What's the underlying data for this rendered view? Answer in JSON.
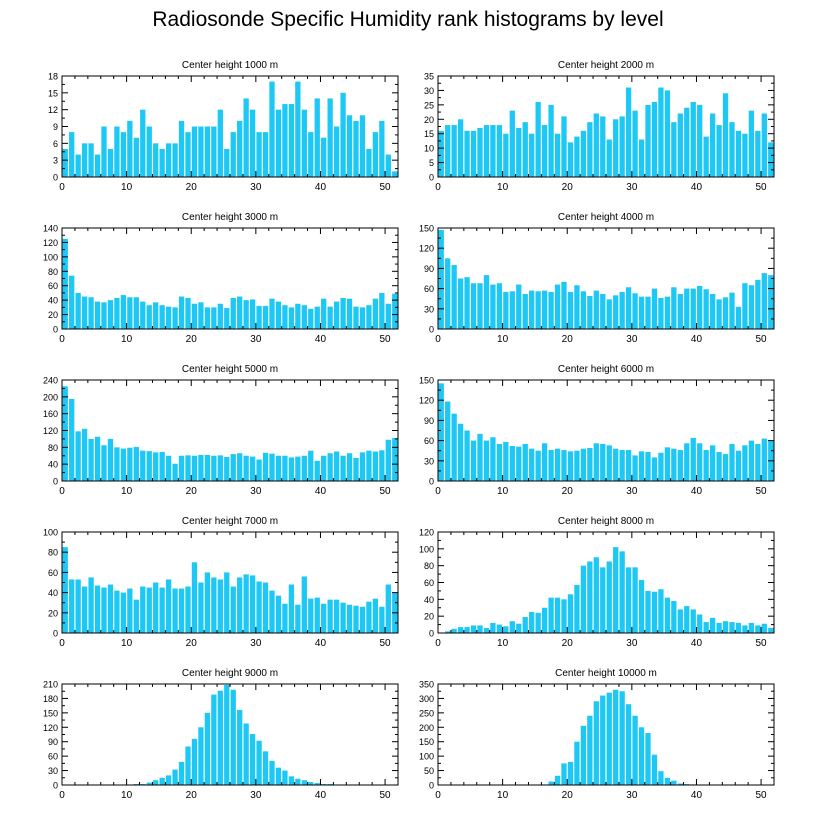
{
  "title": "Radiosonde Specific Humidity rank histograms by level",
  "colors": {
    "bar": "#1ec8f5",
    "axis": "#000000",
    "background": "#ffffff"
  },
  "chart_data": [
    {
      "type": "bar",
      "title": "Center height 1000 m",
      "xlabel": "",
      "ylabel": "",
      "xlim": [
        0,
        52
      ],
      "ylim": [
        0,
        18
      ],
      "xticks": [
        0,
        10,
        20,
        30,
        40,
        50
      ],
      "yticks": [
        0,
        3,
        6,
        9,
        12,
        15,
        18
      ],
      "values": [
        5,
        8,
        4,
        6,
        6,
        4,
        9,
        5,
        9,
        8,
        10,
        7,
        12,
        9,
        6,
        5,
        6,
        6,
        10,
        8,
        9,
        9,
        9,
        9,
        12,
        5,
        8,
        10,
        14,
        12,
        8,
        8,
        17,
        12,
        13,
        13,
        17,
        12,
        8,
        14,
        7,
        14,
        9,
        15,
        11,
        10,
        11,
        5,
        8,
        10,
        4,
        1
      ]
    },
    {
      "type": "bar",
      "title": "Center height 2000 m",
      "xlabel": "",
      "ylabel": "",
      "xlim": [
        0,
        52
      ],
      "ylim": [
        0,
        35
      ],
      "xticks": [
        0,
        10,
        20,
        30,
        40,
        50
      ],
      "yticks": [
        0,
        5,
        10,
        15,
        20,
        25,
        30,
        35
      ],
      "values": [
        16,
        18,
        18,
        20,
        16,
        16,
        17,
        18,
        18,
        18,
        15,
        23,
        17,
        19,
        15,
        26,
        18,
        25,
        15,
        21,
        12,
        14,
        16,
        19,
        22,
        21,
        13,
        20,
        21,
        31,
        23,
        13,
        25,
        26,
        31,
        30,
        19,
        22,
        24,
        26,
        25,
        14,
        22,
        18,
        29,
        19,
        16,
        15,
        23,
        16,
        22,
        12
      ]
    },
    {
      "type": "bar",
      "title": "Center height 3000 m",
      "xlabel": "",
      "ylabel": "",
      "xlim": [
        0,
        52
      ],
      "ylim": [
        0,
        140
      ],
      "xticks": [
        0,
        10,
        20,
        30,
        40,
        50
      ],
      "yticks": [
        0,
        20,
        40,
        60,
        80,
        100,
        120,
        140
      ],
      "values": [
        125,
        74,
        50,
        45,
        44,
        38,
        37,
        40,
        43,
        47,
        44,
        44,
        38,
        33,
        37,
        33,
        31,
        30,
        45,
        43,
        35,
        37,
        30,
        30,
        35,
        29,
        43,
        45,
        40,
        41,
        32,
        32,
        42,
        38,
        33,
        30,
        35,
        33,
        28,
        31,
        42,
        31,
        38,
        43,
        42,
        31,
        30,
        33,
        42,
        50,
        35,
        49
      ]
    },
    {
      "type": "bar",
      "title": "Center height 4000 m",
      "xlabel": "",
      "ylabel": "",
      "xlim": [
        0,
        52
      ],
      "ylim": [
        0,
        150
      ],
      "xticks": [
        0,
        10,
        20,
        30,
        40,
        50
      ],
      "yticks": [
        0,
        30,
        60,
        90,
        120,
        150
      ],
      "values": [
        147,
        105,
        95,
        75,
        77,
        68,
        68,
        80,
        66,
        68,
        55,
        56,
        66,
        52,
        57,
        56,
        57,
        55,
        66,
        70,
        55,
        65,
        56,
        49,
        57,
        52,
        44,
        50,
        55,
        62,
        53,
        48,
        48,
        60,
        46,
        48,
        62,
        52,
        60,
        60,
        64,
        59,
        52,
        44,
        47,
        54,
        33,
        68,
        65,
        73,
        83,
        80
      ]
    },
    {
      "type": "bar",
      "title": "Center height 5000 m",
      "xlabel": "",
      "ylabel": "",
      "xlim": [
        0,
        52
      ],
      "ylim": [
        0,
        240
      ],
      "xticks": [
        0,
        10,
        20,
        30,
        40,
        50
      ],
      "yticks": [
        0,
        40,
        80,
        120,
        160,
        200,
        240
      ],
      "values": [
        225,
        195,
        118,
        124,
        100,
        105,
        85,
        100,
        80,
        77,
        79,
        81,
        72,
        71,
        68,
        69,
        60,
        41,
        60,
        61,
        60,
        62,
        62,
        60,
        61,
        57,
        64,
        66,
        60,
        58,
        51,
        67,
        65,
        60,
        60,
        56,
        58,
        60,
        72,
        48,
        60,
        66,
        70,
        60,
        66,
        55,
        68,
        72,
        70,
        73,
        98,
        102
      ]
    },
    {
      "type": "bar",
      "title": "Center height 6000 m",
      "xlabel": "",
      "ylabel": "",
      "xlim": [
        0,
        52
      ],
      "ylim": [
        0,
        150
      ],
      "xticks": [
        0,
        10,
        20,
        30,
        40,
        50
      ],
      "yticks": [
        0,
        30,
        60,
        90,
        120,
        150
      ],
      "values": [
        145,
        118,
        100,
        85,
        75,
        60,
        70,
        60,
        65,
        55,
        58,
        52,
        51,
        55,
        48,
        45,
        56,
        46,
        48,
        46,
        44,
        45,
        48,
        49,
        56,
        55,
        53,
        48,
        46,
        46,
        38,
        44,
        43,
        35,
        42,
        50,
        48,
        46,
        56,
        64,
        56,
        46,
        53,
        43,
        40,
        55,
        45,
        53,
        60,
        55,
        63,
        60
      ]
    },
    {
      "type": "bar",
      "title": "Center height 7000 m",
      "xlabel": "",
      "ylabel": "",
      "xlim": [
        0,
        52
      ],
      "ylim": [
        0,
        100
      ],
      "xticks": [
        0,
        10,
        20,
        30,
        40,
        50
      ],
      "yticks": [
        0,
        20,
        40,
        60,
        80,
        100
      ],
      "values": [
        85,
        53,
        53,
        46,
        55,
        47,
        45,
        48,
        42,
        40,
        44,
        33,
        46,
        45,
        50,
        45,
        53,
        44,
        44,
        46,
        70,
        50,
        60,
        55,
        53,
        60,
        46,
        55,
        58,
        57,
        51,
        50,
        42,
        37,
        29,
        48,
        28,
        56,
        34,
        35,
        29,
        33,
        33,
        30,
        28,
        27,
        26,
        31,
        34,
        26,
        48,
        40
      ]
    },
    {
      "type": "bar",
      "title": "Center height 8000 m",
      "xlabel": "",
      "ylabel": "",
      "xlim": [
        0,
        52
      ],
      "ylim": [
        0,
        120
      ],
      "xticks": [
        0,
        10,
        20,
        30,
        40,
        50
      ],
      "yticks": [
        0,
        20,
        40,
        60,
        80,
        100,
        120
      ],
      "values": [
        0,
        2,
        5,
        7,
        7,
        9,
        9,
        6,
        12,
        10,
        8,
        14,
        11,
        19,
        25,
        24,
        30,
        42,
        42,
        40,
        46,
        57,
        80,
        85,
        90,
        78,
        85,
        102,
        97,
        78,
        78,
        63,
        50,
        49,
        52,
        42,
        38,
        28,
        32,
        28,
        22,
        13,
        18,
        12,
        14,
        13,
        12,
        9,
        12,
        9,
        11,
        6
      ]
    },
    {
      "type": "bar",
      "title": "Center height 9000 m",
      "xlabel": "",
      "ylabel": "",
      "xlim": [
        0,
        52
      ],
      "ylim": [
        0,
        210
      ],
      "xticks": [
        0,
        10,
        20,
        30,
        40,
        50
      ],
      "yticks": [
        0,
        30,
        60,
        90,
        120,
        150,
        180,
        210
      ],
      "values": [
        0,
        0,
        0,
        0,
        0,
        0,
        0,
        0,
        0,
        0,
        1,
        2,
        2,
        5,
        10,
        15,
        20,
        32,
        48,
        80,
        96,
        120,
        150,
        188,
        196,
        208,
        198,
        156,
        128,
        106,
        92,
        70,
        50,
        36,
        30,
        18,
        13,
        10,
        6,
        4,
        2,
        2,
        1,
        1,
        1,
        0,
        1,
        1,
        0,
        0,
        0,
        1
      ]
    },
    {
      "type": "bar",
      "title": "Center height 10000 m",
      "xlabel": "",
      "ylabel": "",
      "xlim": [
        0,
        52
      ],
      "ylim": [
        0,
        350
      ],
      "xticks": [
        0,
        10,
        20,
        30,
        40,
        50
      ],
      "yticks": [
        0,
        50,
        100,
        150,
        200,
        250,
        300,
        350
      ],
      "values": [
        0,
        0,
        0,
        0,
        0,
        0,
        0,
        0,
        0,
        0,
        0,
        0,
        0,
        0,
        0,
        0,
        2,
        12,
        32,
        75,
        80,
        150,
        205,
        240,
        290,
        310,
        320,
        330,
        325,
        280,
        240,
        200,
        180,
        105,
        48,
        25,
        15,
        5,
        3,
        2,
        1,
        0,
        0,
        0,
        0,
        0,
        0,
        0,
        0,
        0,
        0,
        0
      ]
    }
  ]
}
